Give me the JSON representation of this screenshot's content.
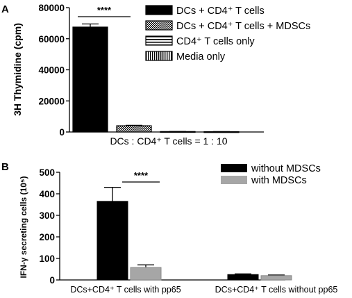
{
  "chart_data": [
    {
      "panel": "A",
      "type": "bar",
      "ylabel": "3H Thymidine (cpm)",
      "xlabel": "DCs : CD4⁺ T cells = 1 : 10",
      "ylim": [
        0,
        80000
      ],
      "yticks": [
        0,
        20000,
        40000,
        60000,
        80000
      ],
      "significance": "****",
      "legend_position": "top-right",
      "series": [
        {
          "name": "DCs + CD4⁺ T cells",
          "value": 67500,
          "error": 2000,
          "pattern": "solid"
        },
        {
          "name": "DCs + CD4⁺ T cells + MDSCs",
          "value": 4000,
          "error": 300,
          "pattern": "checker"
        },
        {
          "name": "CD4⁺ T cells only",
          "value": 300,
          "error": 50,
          "pattern": "hlines"
        },
        {
          "name": "Media only",
          "value": 200,
          "error": 50,
          "pattern": "vlines"
        }
      ]
    },
    {
      "panel": "B",
      "type": "bar",
      "ylabel": "IFN-γ secreting cells (10⁵)",
      "ylim": [
        0,
        500
      ],
      "yticks": [
        0,
        100,
        200,
        300,
        400,
        500
      ],
      "significance": "****",
      "legend_position": "top-right",
      "categories": [
        "DCs+CD4⁺ T cells with pp65",
        "DCs+CD4⁺ T cells without pp65"
      ],
      "series": [
        {
          "name": "without MDSCs",
          "values": [
            365,
            25
          ],
          "errors": [
            65,
            3
          ],
          "color": "#000000"
        },
        {
          "name": "with MDSCs",
          "values": [
            58,
            20
          ],
          "errors": [
            12,
            3
          ],
          "color": "#a6a6a6"
        }
      ]
    }
  ]
}
